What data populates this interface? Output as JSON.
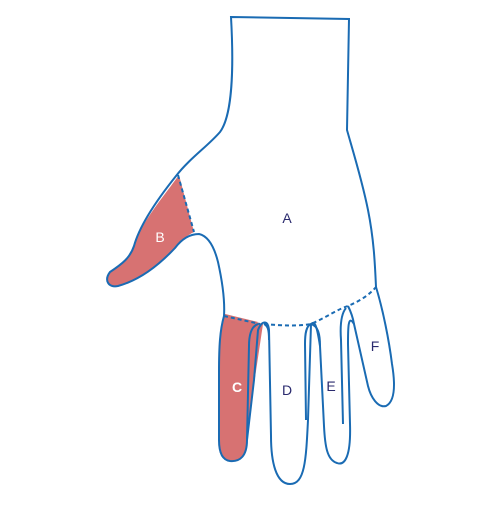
{
  "colors": {
    "outline": "#1a6bb3",
    "shaded_fill": "#d77272",
    "label_dark": "#2a2a6e",
    "label_light": "#ffffff",
    "background": "#ffffff"
  },
  "regions": {
    "A": {
      "label": "A",
      "shaded": false
    },
    "B": {
      "label": "B",
      "shaded": true
    },
    "C": {
      "label": "C",
      "shaded": true
    },
    "D": {
      "label": "D",
      "shaded": false
    },
    "E": {
      "label": "E",
      "shaded": false
    },
    "F": {
      "label": "F",
      "shaded": false
    }
  }
}
